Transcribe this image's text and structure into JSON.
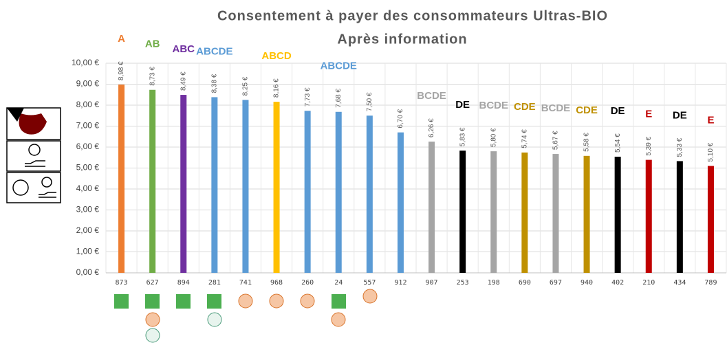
{
  "chart_data": {
    "type": "bar",
    "title": "Consentement à payer des consommateurs Ultras-BIO",
    "subtitle": "Après information",
    "categories": [
      "873",
      "627",
      "894",
      "281",
      "741",
      "968",
      "260",
      "24",
      "557",
      "912",
      "907",
      "253",
      "198",
      "690",
      "697",
      "940",
      "402",
      "210",
      "434",
      "789"
    ],
    "values": [
      8.98,
      8.73,
      8.49,
      8.38,
      8.25,
      8.16,
      7.73,
      7.68,
      7.5,
      6.7,
      6.26,
      5.83,
      5.8,
      5.74,
      5.67,
      5.58,
      5.54,
      5.39,
      5.33,
      5.1
    ],
    "value_labels": [
      "8,98 €",
      "8,73 €",
      "8,49 €",
      "8,38 €",
      "8,25 €",
      "8,16 €",
      "7,73 €",
      "7,68 €",
      "7,50 €",
      "6,70 €",
      "6,26 €",
      "5,83 €",
      "5,80 €",
      "5,74 €",
      "5,67 €",
      "5,58 €",
      "5,54 €",
      "5,39 €",
      "5,33 €",
      "5,10 €"
    ],
    "colors": [
      "#ED7D31",
      "#70AD47",
      "#7030A0",
      "#5B9BD5",
      "#5B9BD5",
      "#FFC000",
      "#5B9BD5",
      "#5B9BD5",
      "#5B9BD5",
      "#5B9BD5",
      "#A5A5A5",
      "#000000",
      "#A5A5A5",
      "#BF9000",
      "#A5A5A5",
      "#BF9000",
      "#000000",
      "#C00000",
      "#000000",
      "#C00000"
    ],
    "group_labels": [
      "A",
      "AB",
      "ABC",
      "ABCDE",
      null,
      "ABCD",
      null,
      "ABCDE",
      null,
      null,
      "BCDE",
      "DE",
      "BCDE",
      "CDE",
      "BCDE",
      "CDE",
      "DE",
      "E",
      "DE",
      "E"
    ],
    "ylim": [
      0,
      10
    ],
    "yticks": [
      {
        "value": 0,
        "label": "0,00 €"
      },
      {
        "value": 1,
        "label": "1,00 €"
      },
      {
        "value": 2,
        "label": "2,00 €"
      },
      {
        "value": 3,
        "label": "3,00 €"
      },
      {
        "value": 4,
        "label": "4,00 €"
      },
      {
        "value": 5,
        "label": "5,00 €"
      },
      {
        "value": 6,
        "label": "6,00 €"
      },
      {
        "value": 7,
        "label": "7,00 €"
      },
      {
        "value": 8,
        "label": "8,00 €"
      },
      {
        "value": 9,
        "label": "9,00 €"
      },
      {
        "value": 10,
        "label": "10,00 €"
      }
    ],
    "grid": true
  }
}
